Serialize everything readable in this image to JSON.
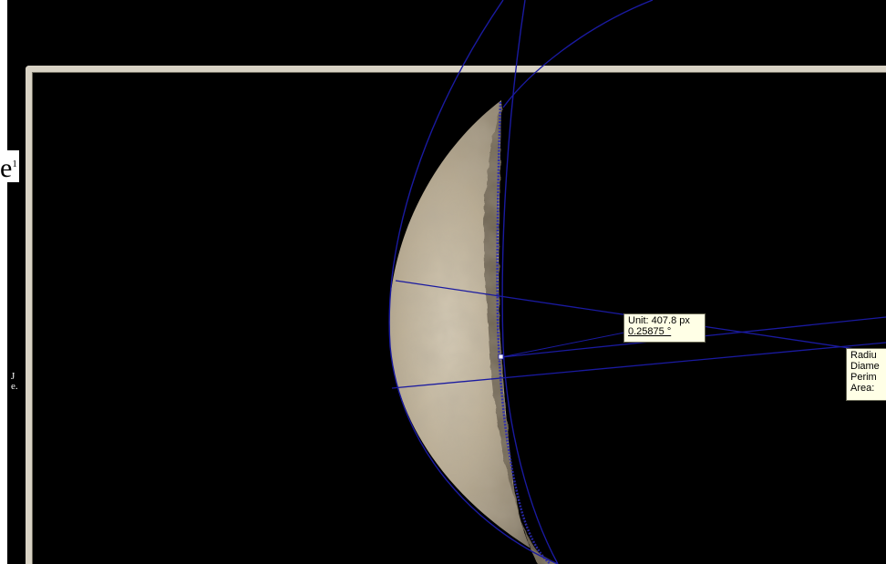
{
  "measurement_label": {
    "unit_line": "Unit: 407.8 px",
    "value_line": "0.25875 °"
  },
  "stats_label": {
    "radius_line": "Radiu",
    "diameter_line": "Diame",
    "perimeter_line": "Perim",
    "area_line": "Area:"
  },
  "text_fragments": {
    "left_top": "e",
    "left_top_sup": "1",
    "left_middle": "J\ne."
  },
  "colors": {
    "background": "#000000",
    "frame": "#d8d2c4",
    "measure_lines": "#1a1aa0",
    "label_bg": "#ffffe6",
    "moon_light": "#d6ccb6",
    "moon_dark": "#6d6455"
  },
  "icons": [
    "measurement-crosshair-icon"
  ]
}
